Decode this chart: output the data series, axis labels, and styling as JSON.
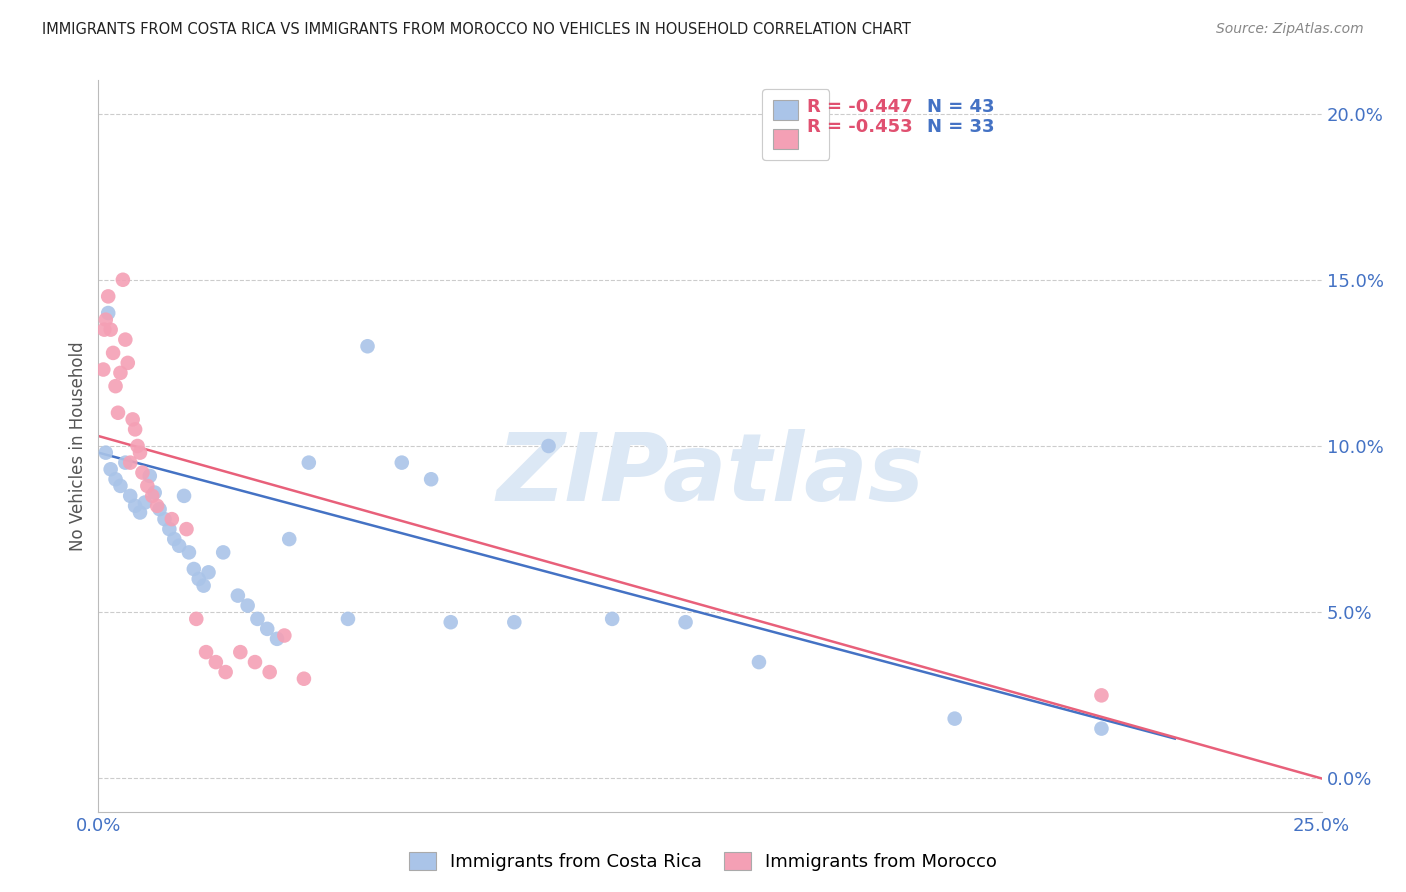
{
  "title": "IMMIGRANTS FROM COSTA RICA VS IMMIGRANTS FROM MOROCCO NO VEHICLES IN HOUSEHOLD CORRELATION CHART",
  "source": "Source: ZipAtlas.com",
  "ylabel": "No Vehicles in Household",
  "ytick_values": [
    0,
    5,
    10,
    15,
    20
  ],
  "xlim": [
    0,
    25
  ],
  "ylim": [
    -1,
    21
  ],
  "legend_entries": [
    {
      "label_r": "R = -0.447",
      "label_n": "N = 43",
      "color": "#aac4e8"
    },
    {
      "label_r": "R = -0.453",
      "label_n": "N = 33",
      "color": "#f4a0b5"
    }
  ],
  "legend_bottom": [
    {
      "label": "Immigrants from Costa Rica",
      "color": "#aac4e8"
    },
    {
      "label": "Immigrants from Morocco",
      "color": "#f4a0b5"
    }
  ],
  "costa_rica_points": [
    [
      0.15,
      9.8
    ],
    [
      0.25,
      9.3
    ],
    [
      0.35,
      9.0
    ],
    [
      0.45,
      8.8
    ],
    [
      0.55,
      9.5
    ],
    [
      0.65,
      8.5
    ],
    [
      0.75,
      8.2
    ],
    [
      0.85,
      8.0
    ],
    [
      0.95,
      8.3
    ],
    [
      1.05,
      9.1
    ],
    [
      1.15,
      8.6
    ],
    [
      1.25,
      8.1
    ],
    [
      1.35,
      7.8
    ],
    [
      1.45,
      7.5
    ],
    [
      1.55,
      7.2
    ],
    [
      1.65,
      7.0
    ],
    [
      1.75,
      8.5
    ],
    [
      1.85,
      6.8
    ],
    [
      1.95,
      6.3
    ],
    [
      2.05,
      6.0
    ],
    [
      2.15,
      5.8
    ],
    [
      2.25,
      6.2
    ],
    [
      2.55,
      6.8
    ],
    [
      2.85,
      5.5
    ],
    [
      3.05,
      5.2
    ],
    [
      3.25,
      4.8
    ],
    [
      3.45,
      4.5
    ],
    [
      3.65,
      4.2
    ],
    [
      3.9,
      7.2
    ],
    [
      4.3,
      9.5
    ],
    [
      5.1,
      4.8
    ],
    [
      5.5,
      13.0
    ],
    [
      6.2,
      9.5
    ],
    [
      6.8,
      9.0
    ],
    [
      7.2,
      4.7
    ],
    [
      8.5,
      4.7
    ],
    [
      9.2,
      10.0
    ],
    [
      10.5,
      4.8
    ],
    [
      12.0,
      4.7
    ],
    [
      13.5,
      3.5
    ],
    [
      17.5,
      1.8
    ],
    [
      20.5,
      1.5
    ],
    [
      0.2,
      14.0
    ]
  ],
  "morocco_points": [
    [
      0.1,
      12.3
    ],
    [
      0.15,
      13.8
    ],
    [
      0.2,
      14.5
    ],
    [
      0.25,
      13.5
    ],
    [
      0.3,
      12.8
    ],
    [
      0.35,
      11.8
    ],
    [
      0.4,
      11.0
    ],
    [
      0.45,
      12.2
    ],
    [
      0.5,
      15.0
    ],
    [
      0.55,
      13.2
    ],
    [
      0.6,
      12.5
    ],
    [
      0.65,
      9.5
    ],
    [
      0.7,
      10.8
    ],
    [
      0.75,
      10.5
    ],
    [
      0.8,
      10.0
    ],
    [
      0.85,
      9.8
    ],
    [
      0.9,
      9.2
    ],
    [
      1.0,
      8.8
    ],
    [
      1.1,
      8.5
    ],
    [
      1.2,
      8.2
    ],
    [
      1.5,
      7.8
    ],
    [
      1.8,
      7.5
    ],
    [
      2.0,
      4.8
    ],
    [
      2.2,
      3.8
    ],
    [
      2.4,
      3.5
    ],
    [
      2.6,
      3.2
    ],
    [
      2.9,
      3.8
    ],
    [
      3.2,
      3.5
    ],
    [
      3.5,
      3.2
    ],
    [
      3.8,
      4.3
    ],
    [
      4.2,
      3.0
    ],
    [
      20.5,
      2.5
    ],
    [
      0.12,
      13.5
    ]
  ],
  "cr_line_x": [
    0,
    22
  ],
  "cr_line_y": [
    9.8,
    1.2
  ],
  "mo_line_x": [
    0,
    25
  ],
  "mo_line_y": [
    10.3,
    0.0
  ],
  "watermark_text": "ZIPatlas",
  "watermark_color": "#dce8f5",
  "bg_color": "#ffffff",
  "grid_color": "#cccccc",
  "title_color": "#222222",
  "axis_label_color": "#4472c4",
  "scatter_costa_rica_color": "#aac4e8",
  "scatter_morocco_color": "#f4a0b5",
  "line_costa_rica_color": "#4472c4",
  "line_morocco_color": "#e8607a"
}
